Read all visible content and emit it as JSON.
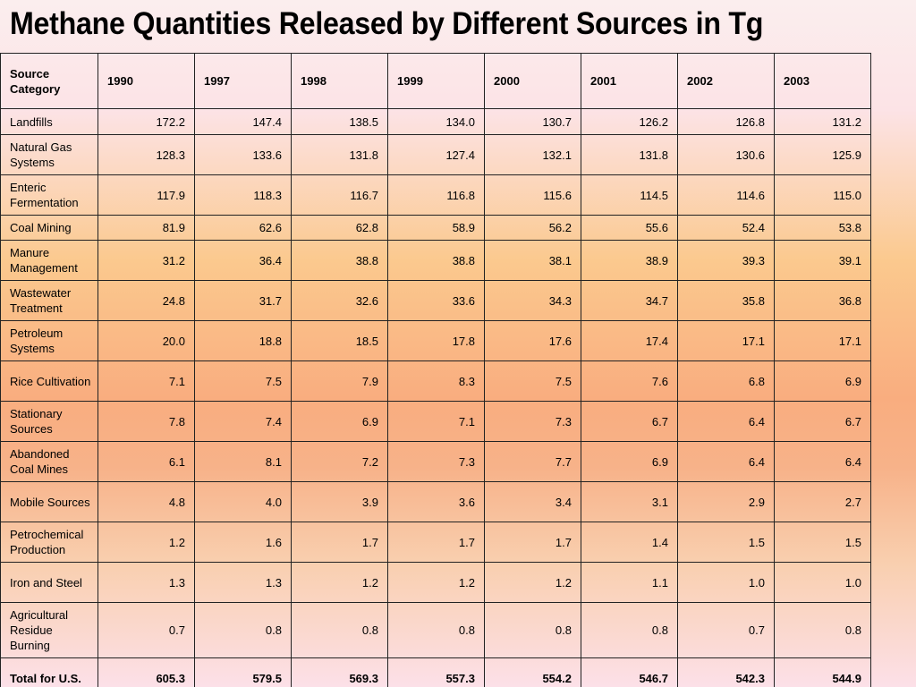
{
  "title": "Methane Quantities Released by Different Sources in Tg",
  "table": {
    "header": [
      "Source Category",
      "1990",
      "1997",
      "1998",
      "1999",
      "2000",
      "2001",
      "2002",
      "2003"
    ],
    "rows": [
      {
        "category": "Landfills",
        "values": [
          "172.2",
          "147.4",
          "138.5",
          "134.0",
          "130.7",
          "126.2",
          "126.8",
          "131.2"
        ]
      },
      {
        "category": "Natural Gas Systems",
        "values": [
          "128.3",
          "133.6",
          "131.8",
          "127.4",
          "132.1",
          "131.8",
          "130.6",
          "125.9"
        ]
      },
      {
        "category": "Enteric Fermentation",
        "values": [
          "117.9",
          "118.3",
          "116.7",
          "116.8",
          "115.6",
          "114.5",
          "114.6",
          "115.0"
        ]
      },
      {
        "category": "Coal Mining",
        "values": [
          "81.9",
          "62.6",
          "62.8",
          "58.9",
          "56.2",
          "55.6",
          "52.4",
          "53.8"
        ]
      },
      {
        "category": "Manure Management",
        "values": [
          "31.2",
          "36.4",
          "38.8",
          "38.8",
          "38.1",
          "38.9",
          "39.3",
          "39.1"
        ]
      },
      {
        "category": "Wastewater Treatment",
        "values": [
          "24.8",
          "31.7",
          "32.6",
          "33.6",
          "34.3",
          "34.7",
          "35.8",
          "36.8"
        ]
      },
      {
        "category": "Petroleum Systems",
        "values": [
          "20.0",
          "18.8",
          "18.5",
          "17.8",
          "17.6",
          "17.4",
          "17.1",
          "17.1"
        ]
      },
      {
        "category": "Rice Cultivation",
        "values": [
          "7.1",
          "7.5",
          "7.9",
          "8.3",
          "7.5",
          "7.6",
          "6.8",
          "6.9"
        ]
      },
      {
        "category": "Stationary Sources",
        "values": [
          "7.8",
          "7.4",
          "6.9",
          "7.1",
          "7.3",
          "6.7",
          "6.4",
          "6.7"
        ]
      },
      {
        "category": "Abandoned Coal Mines",
        "values": [
          "6.1",
          "8.1",
          "7.2",
          "7.3",
          "7.7",
          "6.9",
          "6.4",
          "6.4"
        ]
      },
      {
        "category": "Mobile Sources",
        "values": [
          "4.8",
          "4.0",
          "3.9",
          "3.6",
          "3.4",
          "3.1",
          "2.9",
          "2.7"
        ]
      },
      {
        "category": "Petrochemical Production",
        "values": [
          "1.2",
          "1.6",
          "1.7",
          "1.7",
          "1.7",
          "1.4",
          "1.5",
          "1.5"
        ]
      },
      {
        "category": "Iron and Steel",
        "values": [
          "1.3",
          "1.3",
          "1.2",
          "1.2",
          "1.2",
          "1.1",
          "1.0",
          "1.0"
        ]
      },
      {
        "category": "Agricultural Residue Burning",
        "values": [
          "0.7",
          "0.8",
          "0.8",
          "0.8",
          "0.8",
          "0.8",
          "0.7",
          "0.8"
        ]
      }
    ],
    "total": {
      "category": "Total for U.S.",
      "values": [
        "605.3",
        "579.5",
        "569.3",
        "557.3",
        "554.2",
        "546.7",
        "542.3",
        "544.9"
      ]
    }
  }
}
